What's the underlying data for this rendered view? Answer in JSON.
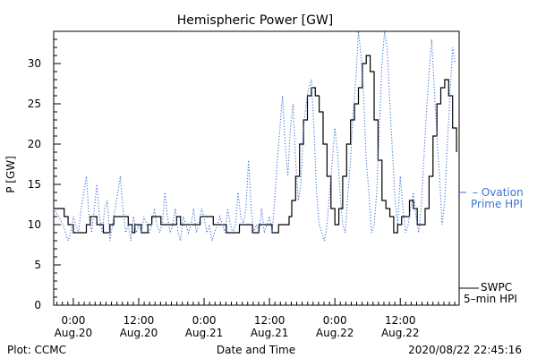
{
  "chart_data": {
    "type": "line",
    "title": "Hemispheric Power [GW]",
    "xlabel": "Date and Time",
    "ylabel": "P [GW]",
    "ylim": [
      0,
      34
    ],
    "xlim": [
      -0.15,
      2.95
    ],
    "x_unit": "days since 0:00 Aug.20",
    "y_ticks": [
      0,
      5,
      10,
      15,
      20,
      25,
      30
    ],
    "x_ticks": [
      {
        "x": 0.0,
        "time": "0:00",
        "date": "Aug.20"
      },
      {
        "x": 0.5,
        "time": "12:00",
        "date": "Aug.20"
      },
      {
        "x": 1.0,
        "time": "0:00",
        "date": "Aug.21"
      },
      {
        "x": 1.5,
        "time": "12:00",
        "date": "Aug.21"
      },
      {
        "x": 2.0,
        "time": "0:00",
        "date": "Aug.22"
      },
      {
        "x": 2.5,
        "time": "12:00",
        "date": "Aug.22"
      }
    ],
    "grid": false,
    "legend_position": "right",
    "series": [
      {
        "name": "SWPC 5-min HPI",
        "legend_lines": [
          "SWPC",
          "5–min HPI"
        ],
        "color": "#000000",
        "style": "solid-step",
        "x": [
          -0.15,
          -0.1,
          -0.07,
          -0.04,
          0.0,
          0.03,
          0.1,
          0.13,
          0.18,
          0.23,
          0.28,
          0.31,
          0.37,
          0.42,
          0.45,
          0.47,
          0.52,
          0.57,
          0.6,
          0.63,
          0.67,
          0.72,
          0.77,
          0.79,
          0.82,
          0.87,
          0.92,
          0.97,
          1.02,
          1.07,
          1.12,
          1.17,
          1.22,
          1.27,
          1.32,
          1.37,
          1.42,
          1.47,
          1.52,
          1.57,
          1.62,
          1.65,
          1.67,
          1.7,
          1.73,
          1.76,
          1.79,
          1.82,
          1.85,
          1.88,
          1.91,
          1.94,
          1.97,
          2.0,
          2.03,
          2.06,
          2.09,
          2.12,
          2.15,
          2.18,
          2.21,
          2.24,
          2.27,
          2.3,
          2.33,
          2.36,
          2.39,
          2.42,
          2.45,
          2.48,
          2.51,
          2.54,
          2.57,
          2.6,
          2.63,
          2.66,
          2.69,
          2.72,
          2.75,
          2.78,
          2.81,
          2.84,
          2.87,
          2.9,
          2.93
        ],
        "y": [
          12,
          12,
          11,
          10,
          9,
          9,
          10,
          11,
          10,
          9,
          10,
          11,
          11,
          10,
          9,
          10,
          9,
          10,
          11,
          11,
          10,
          10,
          10,
          11,
          10,
          10,
          10,
          11,
          11,
          10,
          10,
          9,
          9,
          10,
          10,
          9,
          10,
          10,
          9,
          10,
          10,
          11,
          13,
          16,
          20,
          23,
          26,
          27,
          26,
          24,
          20,
          16,
          12,
          10,
          12,
          16,
          20,
          23,
          25,
          27,
          30,
          31,
          29,
          23,
          18,
          13,
          12,
          11,
          9,
          10,
          11,
          11,
          13,
          12,
          10,
          10,
          12,
          16,
          21,
          25,
          27,
          28,
          26,
          22,
          19
        ]
      },
      {
        "name": "Ovation Prime HPI",
        "legend_lines": [
          "– Ovation",
          "Prime HPI"
        ],
        "color": "#3c74d6",
        "style": "dotted",
        "x": [
          -0.15,
          -0.11,
          -0.08,
          -0.06,
          -0.04,
          -0.02,
          0.0,
          0.02,
          0.04,
          0.06,
          0.08,
          0.1,
          0.12,
          0.14,
          0.16,
          0.18,
          0.2,
          0.22,
          0.24,
          0.26,
          0.28,
          0.3,
          0.32,
          0.34,
          0.36,
          0.38,
          0.4,
          0.42,
          0.44,
          0.46,
          0.48,
          0.5,
          0.52,
          0.54,
          0.56,
          0.58,
          0.6,
          0.62,
          0.64,
          0.66,
          0.68,
          0.7,
          0.72,
          0.74,
          0.76,
          0.78,
          0.8,
          0.82,
          0.84,
          0.86,
          0.88,
          0.9,
          0.92,
          0.94,
          0.96,
          0.98,
          1.0,
          1.02,
          1.04,
          1.06,
          1.08,
          1.1,
          1.12,
          1.14,
          1.16,
          1.18,
          1.2,
          1.22,
          1.24,
          1.26,
          1.28,
          1.3,
          1.32,
          1.34,
          1.36,
          1.38,
          1.4,
          1.42,
          1.44,
          1.46,
          1.48,
          1.5,
          1.52,
          1.54,
          1.56,
          1.58,
          1.6,
          1.62,
          1.64,
          1.66,
          1.68,
          1.7,
          1.72,
          1.74,
          1.76,
          1.78,
          1.8,
          1.82,
          1.84,
          1.86,
          1.88,
          1.9,
          1.92,
          1.94,
          1.96,
          1.98,
          2.0,
          2.02,
          2.04,
          2.06,
          2.08,
          2.1,
          2.12,
          2.14,
          2.16,
          2.18,
          2.2,
          2.22,
          2.24,
          2.26,
          2.28,
          2.3,
          2.32,
          2.34,
          2.36,
          2.38,
          2.4,
          2.42,
          2.44,
          2.46,
          2.48,
          2.5,
          2.52,
          2.54,
          2.56,
          2.58,
          2.6,
          2.62,
          2.64,
          2.66,
          2.68,
          2.7,
          2.72,
          2.74,
          2.76,
          2.78,
          2.8,
          2.82,
          2.84,
          2.86,
          2.88,
          2.9,
          2.92
        ],
        "y": [
          12,
          11,
          10,
          9,
          8,
          9,
          11,
          10,
          9,
          12,
          14,
          16,
          11,
          9,
          12,
          15,
          11,
          9,
          12,
          13,
          8,
          10,
          12,
          14,
          16,
          12,
          9,
          10,
          8,
          11,
          9,
          10,
          9,
          11,
          10,
          9,
          10,
          12,
          10,
          9,
          10,
          14,
          11,
          9,
          10,
          12,
          9,
          8,
          11,
          10,
          9,
          10,
          12,
          9,
          10,
          12,
          11,
          9,
          10,
          8,
          9,
          10,
          11,
          10,
          9,
          12,
          10,
          9,
          10,
          14,
          11,
          10,
          12,
          18,
          12,
          9,
          10,
          9,
          12,
          9,
          10,
          11,
          9,
          13,
          18,
          22,
          26,
          20,
          16,
          22,
          25,
          18,
          13,
          15,
          22,
          25,
          27,
          28,
          22,
          14,
          10,
          9,
          8,
          10,
          14,
          18,
          22,
          19,
          14,
          10,
          9,
          14,
          18,
          24,
          28,
          34,
          31,
          26,
          18,
          14,
          9,
          10,
          14,
          22,
          30,
          34,
          32,
          25,
          19,
          13,
          10,
          16,
          12,
          9,
          10,
          12,
          14,
          11,
          9,
          12,
          18,
          24,
          29,
          33,
          27,
          21,
          16,
          10,
          13,
          20,
          26,
          32,
          30
        ]
      }
    ]
  },
  "footer": {
    "plot_credit": "Plot: CCMC",
    "timestamp": "2020/08/22 22:45:16"
  }
}
